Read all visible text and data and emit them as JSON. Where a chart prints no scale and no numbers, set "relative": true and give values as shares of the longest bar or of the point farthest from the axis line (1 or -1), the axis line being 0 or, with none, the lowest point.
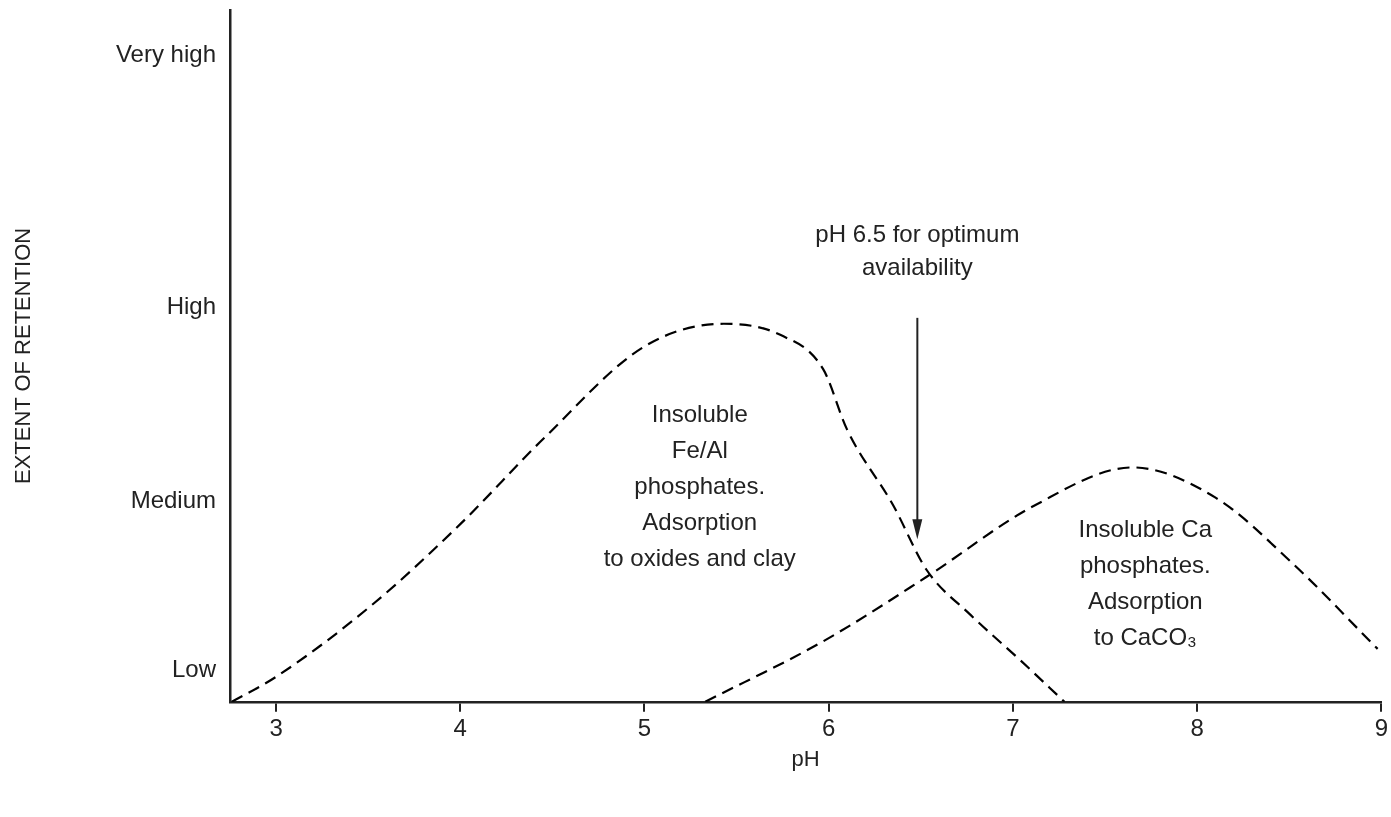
{
  "chart_data": {
    "type": "line",
    "relative": true,
    "xlabel": "pH",
    "xlim": [
      2.75,
      9
    ],
    "xticks": [
      3,
      4,
      5,
      6,
      7,
      8,
      9
    ],
    "series": [
      {
        "color": "#000000",
        "x": [
          2.76,
          3.0,
          3.53,
          4.0,
          4.46,
          5.0,
          5.43,
          5.74,
          5.97,
          6.1,
          6.35,
          6.53,
          6.77,
          7.04,
          7.28
        ],
        "values": [
          0,
          0.066,
          0.26,
          0.47,
          0.7,
          0.94,
          1,
          0.97,
          0.88,
          0.72,
          0.52,
          0.35,
          0.23,
          0.11,
          0
        ]
      },
      {
        "color": "#000000",
        "x": [
          5.33,
          5.97,
          6.53,
          7.12,
          7.65,
          8.1,
          8.51,
          8.98
        ],
        "values": [
          0,
          0.16,
          0.33,
          0.52,
          0.62,
          0.54,
          0.37,
          0.14
        ]
      }
    ],
    "line_style": "dashed",
    "marker": "none",
    "grid": false,
    "legend": false,
    "annotations": [
      "Very high",
      "High",
      "Medium",
      "Low",
      "pH 6.5 for optimum\navailability",
      "Insoluble\nFe/Al\nphosphates.\nAdsorption\nto oxides and clay",
      "Insoluble Ca\nphosphates.\nAdsorption\nto CaCO₃",
      "EXTENT OF RETENTION"
    ]
  }
}
